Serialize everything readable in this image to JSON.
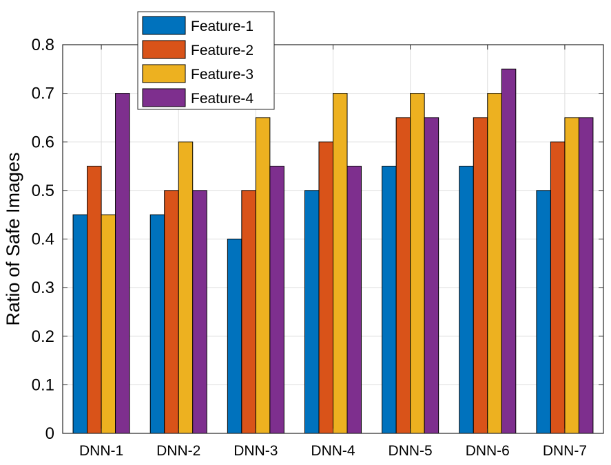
{
  "chart_data": {
    "type": "bar",
    "categories": [
      "DNN-1",
      "DNN-2",
      "DNN-3",
      "DNN-4",
      "DNN-5",
      "DNN-6",
      "DNN-7"
    ],
    "series": [
      {
        "name": "Feature-1",
        "color": "#0072BD",
        "values": [
          0.45,
          0.45,
          0.4,
          0.5,
          0.55,
          0.55,
          0.5
        ]
      },
      {
        "name": "Feature-2",
        "color": "#D95319",
        "values": [
          0.55,
          0.5,
          0.5,
          0.6,
          0.65,
          0.65,
          0.6
        ]
      },
      {
        "name": "Feature-3",
        "color": "#EDB120",
        "values": [
          0.45,
          0.6,
          0.65,
          0.7,
          0.7,
          0.7,
          0.65
        ]
      },
      {
        "name": "Feature-4",
        "color": "#7E2F8E",
        "values": [
          0.7,
          0.5,
          0.55,
          0.55,
          0.65,
          0.75,
          0.65
        ]
      }
    ],
    "title": "",
    "xlabel": "",
    "ylabel": "Ratio of Safe Images",
    "ylim": [
      0,
      0.8
    ],
    "yticks": [
      "0",
      "0.1",
      "0.2",
      "0.3",
      "0.4",
      "0.5",
      "0.6",
      "0.7",
      "0.8"
    ],
    "grid": true,
    "legend_position": "top-left"
  }
}
